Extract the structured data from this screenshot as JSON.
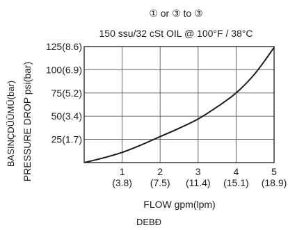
{
  "chart_data": {
    "type": "line",
    "title": "① or ③ to ③",
    "subtitle": "150 ssu/32 cSt OIL @ 100°F / 38°C",
    "xlabel": "FLOW gpm(lpm)",
    "xlabel_secondary": "DEBÐ",
    "ylabel": "PRESSURE DROP psi(bar)",
    "ylabel_secondary": "BASINÇDÜÜMÜ(bar)",
    "xlim": [
      0,
      5
    ],
    "ylim": [
      0,
      125
    ],
    "x_ticks": [
      {
        "value": 1,
        "label": "1",
        "sublabel": "(3.8)"
      },
      {
        "value": 2,
        "label": "2",
        "sublabel": "(7.5)"
      },
      {
        "value": 3,
        "label": "3",
        "sublabel": "(11.4)"
      },
      {
        "value": 4,
        "label": "4",
        "sublabel": "(15.1)"
      },
      {
        "value": 5,
        "label": "5",
        "sublabel": "(18.9)"
      }
    ],
    "y_ticks": [
      {
        "value": 25,
        "label": "25(1.7)"
      },
      {
        "value": 50,
        "label": "50(3.4)"
      },
      {
        "value": 75,
        "label": "75(5.2)"
      },
      {
        "value": 100,
        "label": "100(6.9)"
      },
      {
        "value": 125,
        "label": "125(8.6)"
      }
    ],
    "grid": true,
    "series": [
      {
        "color": "#1a1a1a",
        "x": [
          0,
          0.5,
          1,
          1.5,
          2,
          2.5,
          3,
          3.5,
          4,
          4.5,
          5
        ],
        "y": [
          0,
          5,
          11,
          19,
          28,
          37,
          47,
          60,
          75,
          96,
          124
        ]
      }
    ]
  }
}
